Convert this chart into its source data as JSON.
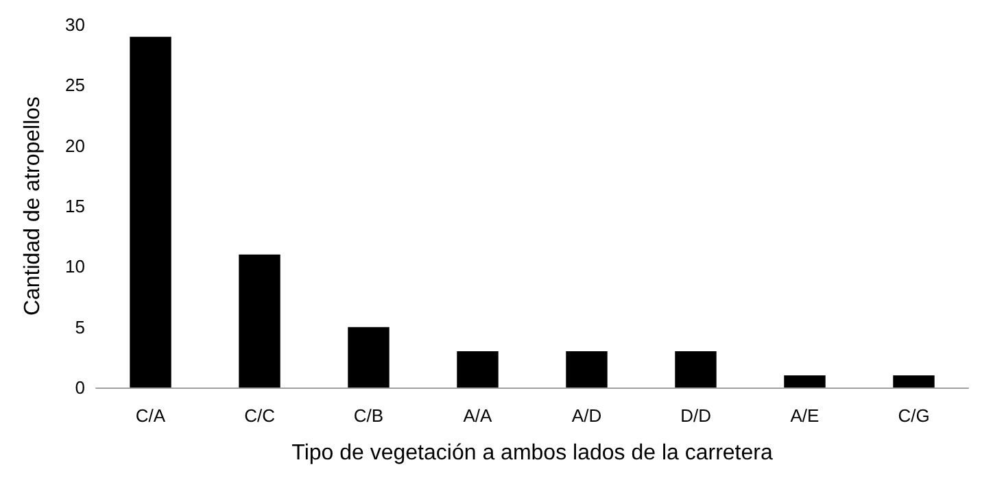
{
  "chart_data": {
    "type": "bar",
    "xlabel": "Tipo de vegetación a ambos lados de la carretera",
    "ylabel": "Cantidad de atropellos",
    "categories": [
      "C/A",
      "C/C",
      "C/B",
      "A/A",
      "A/D",
      "D/D",
      "A/E",
      "C/G"
    ],
    "values": [
      29,
      11,
      5,
      3,
      3,
      3,
      1,
      1
    ],
    "color": "#000000",
    "ylim": [
      0,
      30
    ],
    "yticks": [
      0,
      5,
      10,
      15,
      20,
      25,
      30
    ],
    "grid": false
  }
}
